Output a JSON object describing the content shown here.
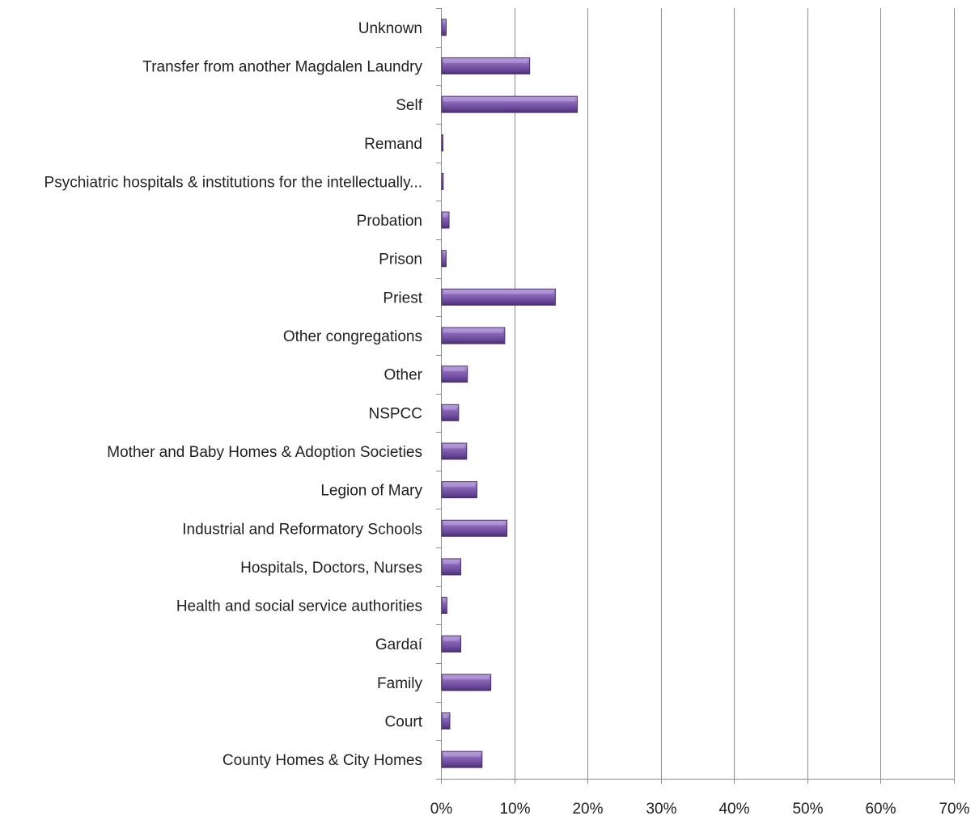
{
  "chart_data": {
    "type": "bar",
    "orientation": "horizontal",
    "title": "",
    "xlabel": "",
    "ylabel": "",
    "xlim": [
      0,
      70
    ],
    "x_ticks": [
      "0%",
      "10%",
      "20%",
      "30%",
      "40%",
      "50%",
      "60%",
      "70%"
    ],
    "grid": "vertical",
    "legend": "none",
    "bar_color": "#7b5aa6",
    "bar_color_dark": "#4a2f72",
    "bar_color_light": "#b9a2dc",
    "categories": [
      "Unknown",
      "Transfer from another Magdalen Laundry",
      "Self",
      "Remand",
      "Psychiatric hospitals & institutions for the intellectually...",
      "Probation",
      "Prison",
      "Priest",
      "Other congregations",
      "Other",
      "NSPCC",
      "Mother and Baby Homes & Adoption Societies",
      "Legion of Mary",
      "Industrial and Reformatory Schools",
      "Hospitals, Doctors, Nurses",
      "Health and social service authorities",
      "Gardaí",
      "Family",
      "Court",
      "County Homes & City Homes"
    ],
    "values": [
      0.6,
      12.0,
      18.5,
      0.1,
      0.2,
      1.0,
      0.6,
      15.5,
      8.6,
      3.5,
      2.3,
      3.4,
      4.8,
      8.9,
      2.6,
      0.7,
      2.6,
      6.7,
      1.1,
      5.5
    ]
  }
}
